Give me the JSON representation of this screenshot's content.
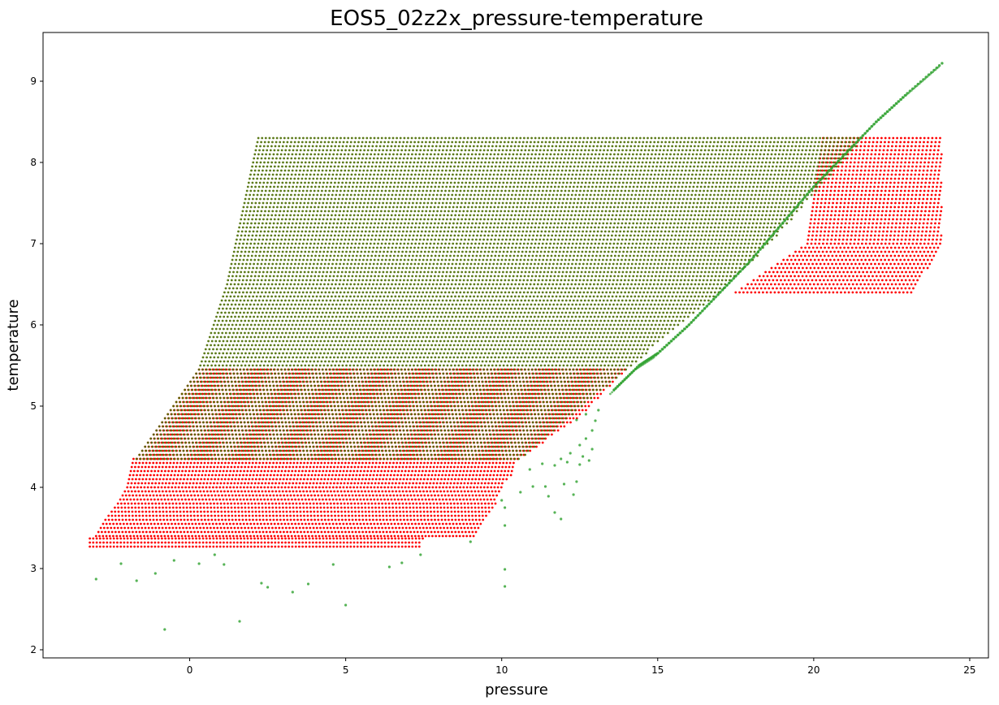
{
  "chart_data": {
    "type": "scatter",
    "title": "EOS5_02z2x_pressure-temperature",
    "xlabel": "pressure",
    "ylabel": "temperature",
    "xlim": [
      -4.7,
      25.6
    ],
    "ylim": [
      1.9,
      9.6
    ],
    "xticks": [
      0,
      5,
      10,
      15,
      20,
      25
    ],
    "yticks": [
      2,
      3,
      4,
      5,
      6,
      7,
      8,
      9
    ],
    "grid": false,
    "legend": "none",
    "series": [
      {
        "color": "#ff0000",
        "regions": [
          {
            "ymin": 3.27,
            "ymax": 3.4,
            "left": [
              [
                3.27,
                -3.2
              ],
              [
                3.4,
                -3.2
              ]
            ],
            "right": [
              [
                3.27,
                7.4
              ],
              [
                3.4,
                7.5
              ]
            ]
          },
          {
            "ymin": 3.4,
            "ymax": 4.35,
            "left": [
              [
                3.4,
                -3.0
              ],
              [
                3.6,
                -2.7
              ],
              [
                3.8,
                -2.3
              ],
              [
                4.0,
                -2.0
              ],
              [
                4.35,
                -1.8
              ]
            ],
            "right": [
              [
                3.4,
                9.2
              ],
              [
                3.6,
                9.5
              ],
              [
                3.8,
                9.8
              ],
              [
                4.0,
                10.0
              ],
              [
                4.2,
                10.4
              ],
              [
                4.35,
                10.5
              ]
            ]
          },
          {
            "ymin": 4.35,
            "ymax": 5.45,
            "left": [
              [
                4.35,
                -1.7
              ],
              [
                4.9,
                -0.7
              ],
              [
                5.45,
                0.3
              ]
            ],
            "right": [
              [
                4.35,
                10.6
              ],
              [
                4.9,
                12.6
              ],
              [
                5.45,
                14.0
              ]
            ]
          },
          {
            "ymin": 6.4,
            "ymax": 8.3,
            "left": [
              [
                6.4,
                17.5
              ],
              [
                7.0,
                19.8
              ],
              [
                8.3,
                20.3
              ]
            ],
            "right": [
              [
                6.4,
                23.2
              ],
              [
                7.0,
                24.1
              ],
              [
                8.3,
                24.1
              ]
            ]
          }
        ]
      },
      {
        "color": "#4a6b00",
        "regions": [
          {
            "ymin": 4.35,
            "ymax": 8.3,
            "left": [
              [
                4.35,
                -1.7
              ],
              [
                5.45,
                0.3
              ],
              [
                6.5,
                1.2
              ],
              [
                8.3,
                2.2
              ]
            ],
            "right": [
              [
                4.35,
                10.6
              ],
              [
                5.45,
                14.0
              ],
              [
                6.4,
                17.0
              ],
              [
                7.0,
                18.6
              ],
              [
                8.3,
                21.6
              ]
            ]
          }
        ]
      },
      {
        "color": "#2ca02c",
        "scattered": [
          {
            "x": -3.0,
            "y": 2.87
          },
          {
            "x": -2.2,
            "y": 3.06
          },
          {
            "x": -1.7,
            "y": 2.85
          },
          {
            "x": -1.1,
            "y": 2.94
          },
          {
            "x": -0.8,
            "y": 2.25
          },
          {
            "x": -0.5,
            "y": 3.1
          },
          {
            "x": 0.3,
            "y": 3.06
          },
          {
            "x": 0.8,
            "y": 3.17
          },
          {
            "x": 1.1,
            "y": 3.05
          },
          {
            "x": 1.6,
            "y": 2.35
          },
          {
            "x": 2.3,
            "y": 2.82
          },
          {
            "x": 2.5,
            "y": 2.77
          },
          {
            "x": 3.3,
            "y": 2.71
          },
          {
            "x": 3.8,
            "y": 2.81
          },
          {
            "x": 4.6,
            "y": 3.05
          },
          {
            "x": 5.0,
            "y": 2.55
          },
          {
            "x": 6.4,
            "y": 3.02
          },
          {
            "x": 6.8,
            "y": 3.07
          },
          {
            "x": 7.4,
            "y": 3.17
          },
          {
            "x": 9.0,
            "y": 3.33
          },
          {
            "x": 10.1,
            "y": 2.99
          },
          {
            "x": 10.1,
            "y": 2.78
          },
          {
            "x": 10.1,
            "y": 3.53
          },
          {
            "x": 10.1,
            "y": 3.75
          },
          {
            "x": 10.0,
            "y": 3.84
          },
          {
            "x": 10.6,
            "y": 3.94
          },
          {
            "x": 11.0,
            "y": 4.01
          },
          {
            "x": 11.4,
            "y": 4.01
          },
          {
            "x": 11.5,
            "y": 3.89
          },
          {
            "x": 11.7,
            "y": 3.69
          },
          {
            "x": 11.9,
            "y": 3.61
          },
          {
            "x": 12.0,
            "y": 4.04
          },
          {
            "x": 12.3,
            "y": 3.91
          },
          {
            "x": 12.4,
            "y": 4.07
          },
          {
            "x": 10.9,
            "y": 4.22
          },
          {
            "x": 11.3,
            "y": 4.29
          },
          {
            "x": 11.7,
            "y": 4.27
          },
          {
            "x": 12.1,
            "y": 4.31
          },
          {
            "x": 12.5,
            "y": 4.28
          },
          {
            "x": 12.8,
            "y": 4.33
          },
          {
            "x": 12.9,
            "y": 4.47
          },
          {
            "x": 12.7,
            "y": 4.6
          },
          {
            "x": 12.5,
            "y": 4.52
          },
          {
            "x": 12.9,
            "y": 4.7
          },
          {
            "x": 13.0,
            "y": 4.82
          },
          {
            "x": 12.7,
            "y": 4.9
          },
          {
            "x": 12.4,
            "y": 4.83
          },
          {
            "x": 12.2,
            "y": 4.42
          },
          {
            "x": 13.1,
            "y": 4.95
          },
          {
            "x": 12.6,
            "y": 4.38
          },
          {
            "x": 11.9,
            "y": 4.35
          }
        ],
        "curve": [
          [
            13.6,
            5.2
          ],
          [
            14.4,
            5.5
          ],
          [
            15.0,
            5.65
          ],
          [
            16.0,
            6.0
          ],
          [
            17.0,
            6.4
          ],
          [
            18.0,
            6.8
          ],
          [
            19.0,
            7.25
          ],
          [
            20.0,
            7.7
          ],
          [
            21.0,
            8.1
          ],
          [
            22.0,
            8.5
          ],
          [
            23.0,
            8.85
          ],
          [
            24.2,
            9.25
          ]
        ]
      }
    ]
  }
}
